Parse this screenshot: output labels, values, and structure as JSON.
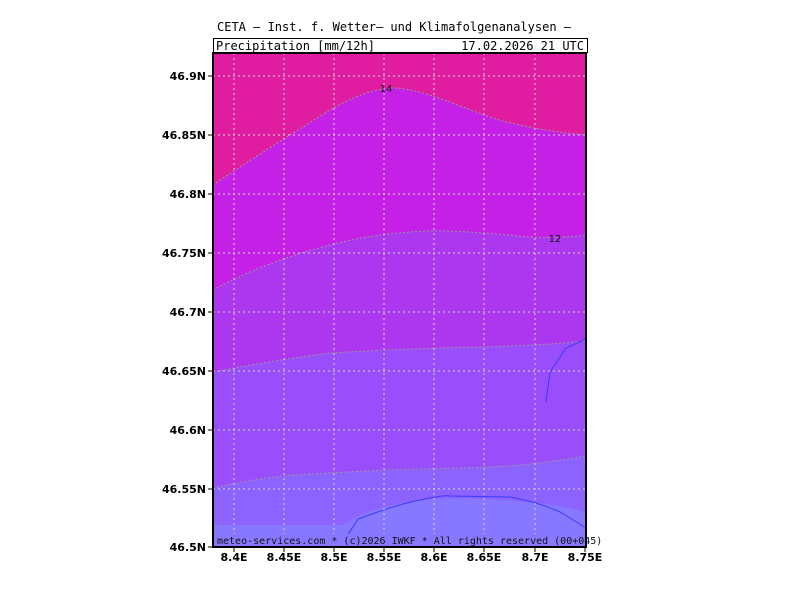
{
  "header": {
    "title": "CETA — Inst. f. Wetter— und Klimafolgenanalysen —",
    "variable": "Precipitation_[mm/12h]",
    "datetime": "17.02.2026  21  UTC"
  },
  "footer": {
    "credit": "meteo-services.com * (c)2026 IWKF * All rights reserved (00+045)"
  },
  "axes": {
    "x_ticks": [
      "8.4E",
      "8.45E",
      "8.5E",
      "8.55E",
      "8.6E",
      "8.65E",
      "8.7E",
      "8.75E"
    ],
    "y_ticks": [
      "46.9N",
      "46.85N",
      "46.8N",
      "46.75N",
      "46.7N",
      "46.65N",
      "46.6N",
      "46.55N",
      "46.5N"
    ]
  },
  "contour_labels": [
    "14",
    "12"
  ],
  "colors": {
    "band_top": "#e01ca0",
    "band_2": "#c521e6",
    "band_3": "#ad36ef",
    "band_4": "#9a4dfa",
    "band_5": "#8c63ff",
    "band_bottom": "#8878ff",
    "low_contour": "#3a3aff"
  }
}
